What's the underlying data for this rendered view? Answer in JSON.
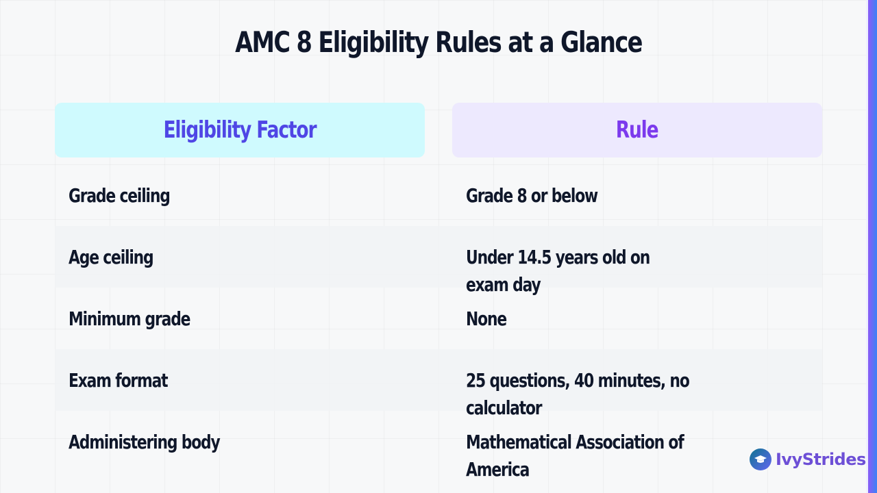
{
  "slide": {
    "title": "AMC 8 Eligibility Rules at a Glance"
  },
  "table": {
    "headers": {
      "factor": "Eligibility Factor",
      "rule": "Rule"
    },
    "rows": [
      {
        "factor": "Grade ceiling",
        "rule": "Grade 8 or below"
      },
      {
        "factor": "Age ceiling",
        "rule": "Under 14.5 years old on exam day"
      },
      {
        "factor": "Minimum grade",
        "rule": "None"
      },
      {
        "factor": "Exam format",
        "rule": "25 questions, 40 minutes, no calculator"
      },
      {
        "factor": "Administering body",
        "rule": "Mathematical Association of America"
      }
    ]
  },
  "brand": {
    "name": "IvyStrides",
    "icon": "graduation-cap-icon"
  },
  "colors": {
    "title": "#0f172a",
    "factor_header_bg": "#cffafe",
    "factor_header_text": "#4f46e5",
    "rule_header_bg": "#ede9fe",
    "rule_header_text": "#7c3aed",
    "accent_bar": "#8b5cf6"
  }
}
